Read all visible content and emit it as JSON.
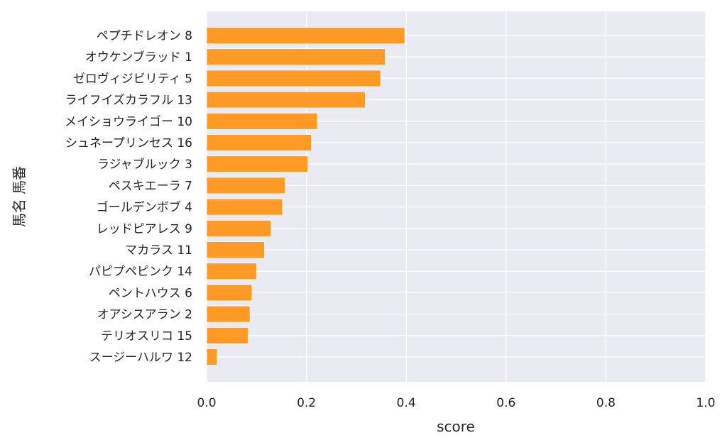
{
  "chart_data": {
    "type": "bar",
    "orientation": "horizontal",
    "categories": [
      "ペプチドレオン 8",
      "オウケンブラッド 1",
      "ゼロヴィジビリティ 5",
      "ライフイズカラフル 13",
      "メイショウライゴー 10",
      "シュネープリンセス 16",
      "ラジャブルック 3",
      "ペスキエーラ 7",
      "ゴールデンボブ 4",
      "レッドピアレス 9",
      "マカラス 11",
      "パピプペピンク 14",
      "ペントハウス 6",
      "オアシスアラン 2",
      "テリオスリコ 15",
      "スージーハルワ 12"
    ],
    "values": [
      0.397,
      0.358,
      0.349,
      0.318,
      0.222,
      0.21,
      0.203,
      0.157,
      0.152,
      0.129,
      0.116,
      0.1,
      0.091,
      0.087,
      0.083,
      0.021
    ],
    "xlabel": "score",
    "ylabel": "馬名 馬番",
    "xlim": [
      0,
      1
    ],
    "xticks": [
      "0.0",
      "0.2",
      "0.4",
      "0.6",
      "0.8",
      "1.0"
    ],
    "bar_color": "#ff9a27",
    "plot_background": "#eaeaf2",
    "grid": true
  }
}
